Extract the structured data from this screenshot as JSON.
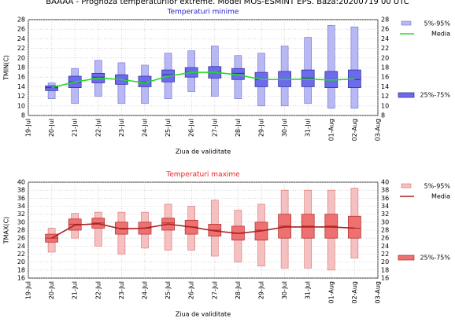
{
  "header": "BAAAA - Prognoza temperaturilor extreme. Model MOS-ESMINT EPS. Baza:20200719 00 UTC",
  "chart_data": [
    {
      "type": "box",
      "title": "Temperaturi minime",
      "title_color": "#2222cc",
      "xlabel": "Ziua de validitate",
      "ylabel": "TMIN(C)",
      "categories": [
        "19-Jul",
        "20-Jul",
        "21-Jul",
        "22-Jul",
        "23-Jul",
        "24-Jul",
        "25-Jul",
        "26-Jul",
        "27-Jul",
        "28-Jul",
        "29-Jul",
        "30-Jul",
        "31-Jul",
        "01-Aug",
        "02-Aug",
        "03-Aug"
      ],
      "ylim": [
        8,
        28
      ],
      "yticks": [
        8,
        10,
        12,
        14,
        16,
        18,
        20,
        22,
        24,
        26,
        28
      ],
      "grid": true,
      "whisker": {
        "name": "5%-95%",
        "color": "#b8b8f4",
        "stroke": "#7070d0",
        "low": [
          null,
          11.5,
          10.5,
          12,
          10.5,
          10.5,
          11.5,
          13,
          12,
          11.5,
          10,
          10,
          10.5,
          9.5,
          9.5,
          null
        ],
        "high": [
          null,
          14.8,
          17.8,
          19.5,
          19,
          18.5,
          21,
          21.5,
          22.5,
          20.5,
          21,
          22.5,
          24.3,
          26.8,
          26.5,
          null
        ]
      },
      "box": {
        "name": "25%-75%",
        "color": "#6c6cea",
        "stroke": "#2a2a9a",
        "low": [
          null,
          13.2,
          13.8,
          14.8,
          14.5,
          14,
          15,
          16,
          15.8,
          15.5,
          14,
          14,
          14,
          13.8,
          13.8,
          null
        ],
        "high": [
          null,
          14.2,
          16.2,
          16.8,
          16.5,
          16.2,
          17.5,
          18,
          18.2,
          17.8,
          17,
          17.2,
          17.5,
          17.2,
          17.5,
          null
        ],
        "median": [
          null,
          13.8,
          15,
          16,
          15.5,
          15,
          16.5,
          17,
          17,
          16.8,
          15.5,
          15.5,
          15.8,
          15.5,
          15.5,
          null
        ]
      },
      "mean": {
        "name": "Media",
        "color": "#22dd22",
        "values": [
          null,
          13.8,
          15,
          15.8,
          15.5,
          14.8,
          16.2,
          17,
          17,
          16.5,
          15.5,
          15.5,
          15.6,
          15.4,
          15.6,
          null
        ]
      }
    },
    {
      "type": "box",
      "title": "Temperaturi maxime",
      "title_color": "#ee2222",
      "xlabel": "Ziua de validitate",
      "ylabel": "TMAX(C)",
      "categories": [
        "19-Jul",
        "20-Jul",
        "21-Jul",
        "22-Jul",
        "23-Jul",
        "24-Jul",
        "25-Jul",
        "26-Jul",
        "27-Jul",
        "28-Jul",
        "29-Jul",
        "30-Jul",
        "31-Jul",
        "01-Aug",
        "02-Aug",
        "03-Aug"
      ],
      "ylim": [
        16,
        40
      ],
      "yticks": [
        16,
        18,
        20,
        22,
        24,
        26,
        28,
        30,
        32,
        34,
        36,
        38,
        40
      ],
      "grid": true,
      "whisker": {
        "name": "5%-95%",
        "color": "#f6c0c0",
        "stroke": "#d87070",
        "low": [
          null,
          22.5,
          26,
          24,
          22,
          23.5,
          23,
          23,
          21.5,
          20,
          19,
          18.5,
          18.5,
          18,
          21,
          null
        ],
        "high": [
          null,
          28.5,
          32.2,
          32.5,
          32.5,
          32.5,
          34.5,
          34,
          35.5,
          33,
          34.5,
          38,
          38,
          38,
          38.5,
          null
        ]
      },
      "box": {
        "name": "25%-75%",
        "color": "#ee7070",
        "stroke": "#aa2a2a",
        "low": [
          null,
          25,
          28,
          28.5,
          27,
          27,
          28,
          27,
          26.5,
          25.5,
          25.5,
          26,
          26,
          26,
          26,
          null
        ],
        "high": [
          null,
          27,
          30.8,
          31,
          30,
          30,
          31,
          30.5,
          29.5,
          29,
          30,
          32,
          32,
          32,
          31.5,
          null
        ],
        "median": [
          null,
          26,
          29.5,
          29.8,
          28.5,
          28.5,
          29.8,
          28.8,
          28,
          27.2,
          28,
          29,
          29,
          29,
          28.5,
          null
        ]
      },
      "mean": {
        "name": "Media",
        "color": "#aa2222",
        "values": [
          null,
          26,
          29.3,
          29.6,
          28.3,
          28.5,
          29.5,
          28.8,
          27.8,
          27.2,
          27.8,
          28.8,
          28.8,
          28.8,
          28.5,
          null
        ]
      }
    }
  ]
}
